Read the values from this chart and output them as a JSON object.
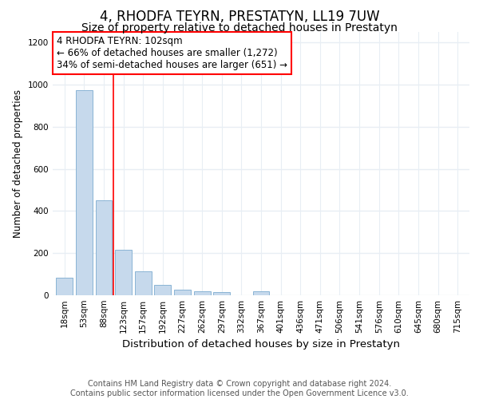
{
  "title": "4, RHODFA TEYRN, PRESTATYN, LL19 7UW",
  "subtitle": "Size of property relative to detached houses in Prestatyn",
  "xlabel": "Distribution of detached houses by size in Prestatyn",
  "ylabel": "Number of detached properties",
  "categories": [
    "18sqm",
    "53sqm",
    "88sqm",
    "123sqm",
    "157sqm",
    "192sqm",
    "227sqm",
    "262sqm",
    "297sqm",
    "332sqm",
    "367sqm",
    "401sqm",
    "436sqm",
    "471sqm",
    "506sqm",
    "541sqm",
    "576sqm",
    "610sqm",
    "645sqm",
    "680sqm",
    "715sqm"
  ],
  "values": [
    85,
    975,
    450,
    215,
    115,
    50,
    25,
    20,
    15,
    0,
    20,
    0,
    0,
    0,
    0,
    0,
    0,
    0,
    0,
    0,
    0
  ],
  "bar_color": "#c6d9ec",
  "bar_edgecolor": "#8ab4d4",
  "redline_x": 2.5,
  "annotation_text": "4 RHODFA TEYRN: 102sqm\n← 66% of detached houses are smaller (1,272)\n34% of semi-detached houses are larger (651) →",
  "ylim": [
    0,
    1250
  ],
  "yticks": [
    0,
    200,
    400,
    600,
    800,
    1000,
    1200
  ],
  "footer_text": "Contains HM Land Registry data © Crown copyright and database right 2024.\nContains public sector information licensed under the Open Government Licence v3.0.",
  "bg_color": "#ffffff",
  "plot_bg_color": "#ffffff",
  "grid_color": "#e8eef4",
  "title_fontsize": 12,
  "subtitle_fontsize": 10,
  "xlabel_fontsize": 9.5,
  "ylabel_fontsize": 8.5,
  "tick_fontsize": 7.5,
  "annotation_fontsize": 8.5,
  "footer_fontsize": 7
}
